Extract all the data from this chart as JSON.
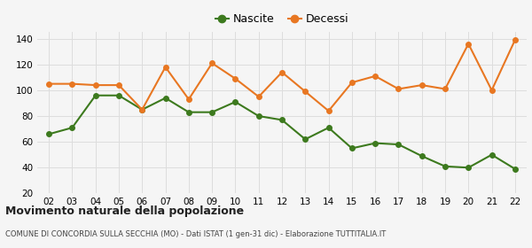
{
  "years": [
    "02",
    "03",
    "04",
    "05",
    "06",
    "07",
    "08",
    "09",
    "10",
    "11",
    "12",
    "13",
    "14",
    "15",
    "16",
    "17",
    "18",
    "19",
    "20",
    "21",
    "22"
  ],
  "nascite": [
    66,
    71,
    96,
    96,
    85,
    94,
    83,
    83,
    91,
    80,
    77,
    62,
    71,
    55,
    59,
    58,
    49,
    41,
    40,
    50,
    39
  ],
  "decessi": [
    105,
    105,
    104,
    104,
    85,
    118,
    93,
    121,
    109,
    95,
    114,
    99,
    84,
    106,
    111,
    101,
    104,
    101,
    136,
    100,
    139
  ],
  "nascite_color": "#3d7a1e",
  "decessi_color": "#e87722",
  "background_color": "#f5f5f5",
  "grid_color": "#dddddd",
  "ylim": [
    20,
    145
  ],
  "yticks": [
    20,
    40,
    60,
    80,
    100,
    120,
    140
  ],
  "title": "Movimento naturale della popolazione",
  "subtitle": "COMUNE DI CONCORDIA SULLA SECCHIA (MO) - Dati ISTAT (1 gen-31 dic) - Elaborazione TUTTITALIA.IT",
  "legend_nascite": "Nascite",
  "legend_decessi": "Decessi",
  "marker_size": 4,
  "line_width": 1.5
}
